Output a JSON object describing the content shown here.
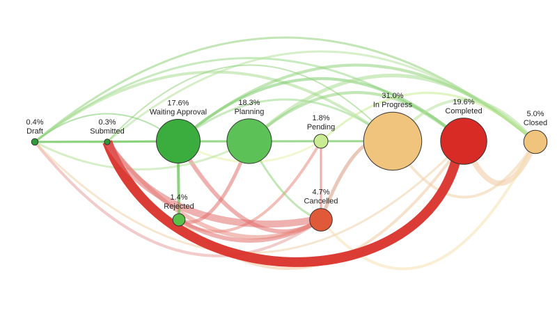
{
  "nodes": [
    {
      "label": "Draft",
      "value": 0.4,
      "value_label": "0.4%",
      "color": "#2f9a3a"
    },
    {
      "label": "Submitted",
      "value": 0.3,
      "value_label": "0.3%",
      "color": "#2f9a3a"
    },
    {
      "label": "Waiting Approval",
      "value": 17.6,
      "value_label": "17.6%",
      "color": "#3aad3e"
    },
    {
      "label": "Planning",
      "value": 18.3,
      "value_label": "18.3%",
      "color": "#5cc156"
    },
    {
      "label": "Pending",
      "value": 1.8,
      "value_label": "1.8%",
      "color": "#c9ec92"
    },
    {
      "label": "In Progress",
      "value": 31.0,
      "value_label": "31.0%",
      "color": "#f1c47e"
    },
    {
      "label": "Completed",
      "value": 19.6,
      "value_label": "19.6%",
      "color": "#d92b25"
    },
    {
      "label": "Closed",
      "value": 5.0,
      "value_label": "5.0%",
      "color": "#f1c47e"
    },
    {
      "label": "Rejected",
      "value": 1.4,
      "value_label": "1.4%",
      "color": "#5cbf4a"
    },
    {
      "label": "Cancelled",
      "value": 4.7,
      "value_label": "4.7%",
      "color": "#e05a3a"
    }
  ]
}
